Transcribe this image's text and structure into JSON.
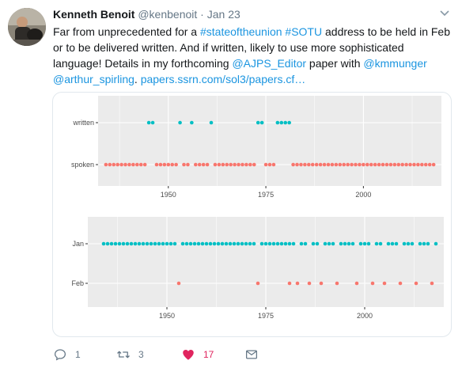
{
  "tweet": {
    "author_name": "Kenneth Benoit",
    "handle": "@kenbenoit",
    "separator": "·",
    "date": "Jan 23",
    "text": {
      "t1": "Far from unprecedented for a ",
      "hashtag1": "#stateoftheunion",
      "t2": " ",
      "hashtag2": "#SOTU",
      "t3": " address to be held in Feb or to be delivered written. And if written, likely to use more sophisticated language! Details in my forthcoming ",
      "mention1": "@AJPS_Editor",
      "t4": " paper with ",
      "mention2": "@kmmunger",
      "t5": " ",
      "mention3": "@arthur_spirling",
      "t6": ". ",
      "link": "papers.ssrn.com/sol3/papers.cf…"
    }
  },
  "actions": {
    "reply_count": "1",
    "retweet_count": "3",
    "like_count": "17"
  },
  "icons": [
    "caret-down-icon",
    "reply-icon",
    "retweet-icon",
    "heart-icon",
    "message-icon"
  ],
  "colors": {
    "link": "#1b95e0",
    "like": "#e0245e",
    "teal": "#00bfc4",
    "salmon": "#f8766d",
    "panel": "#ebebeb"
  },
  "chart_data": [
    {
      "type": "scatter",
      "categories": [
        "written",
        "spoken"
      ],
      "xlim": [
        1932,
        2020
      ],
      "xticks": [
        1950,
        1975,
        2000
      ],
      "series": [
        {
          "category": "written",
          "color": "#00bfc4",
          "x": [
            1945,
            1946,
            1953,
            1956,
            1961,
            1973,
            1974,
            1978,
            1979,
            1980,
            1981
          ]
        },
        {
          "category": "spoken",
          "color": "#f8766d",
          "x": [
            1934,
            1935,
            1936,
            1937,
            1938,
            1939,
            1940,
            1941,
            1942,
            1943,
            1944,
            1947,
            1948,
            1949,
            1950,
            1951,
            1952,
            1954,
            1955,
            1957,
            1958,
            1959,
            1960,
            1962,
            1963,
            1964,
            1965,
            1966,
            1967,
            1968,
            1969,
            1970,
            1971,
            1972,
            1975,
            1976,
            1977,
            1982,
            1983,
            1984,
            1985,
            1986,
            1987,
            1988,
            1989,
            1990,
            1991,
            1992,
            1993,
            1994,
            1995,
            1996,
            1997,
            1998,
            1999,
            2000,
            2001,
            2002,
            2003,
            2004,
            2005,
            2006,
            2007,
            2008,
            2009,
            2010,
            2011,
            2012,
            2013,
            2014,
            2015,
            2016,
            2017,
            2018
          ]
        }
      ]
    },
    {
      "type": "scatter",
      "categories": [
        "Jan",
        "Feb"
      ],
      "xlim": [
        1930,
        2020
      ],
      "xticks": [
        1950,
        1975,
        2000
      ],
      "series": [
        {
          "category": "Jan",
          "color": "#00bfc4",
          "x": [
            1934,
            1935,
            1936,
            1937,
            1938,
            1939,
            1940,
            1941,
            1942,
            1943,
            1944,
            1945,
            1946,
            1947,
            1948,
            1949,
            1950,
            1951,
            1952,
            1954,
            1955,
            1956,
            1957,
            1958,
            1959,
            1960,
            1961,
            1962,
            1963,
            1964,
            1965,
            1966,
            1967,
            1968,
            1969,
            1970,
            1971,
            1972,
            1974,
            1975,
            1976,
            1977,
            1978,
            1979,
            1980,
            1981,
            1982,
            1984,
            1985,
            1987,
            1988,
            1990,
            1991,
            1992,
            1994,
            1995,
            1996,
            1997,
            1999,
            2000,
            2001,
            2003,
            2004,
            2006,
            2007,
            2008,
            2010,
            2011,
            2012,
            2014,
            2015,
            2016,
            2018
          ]
        },
        {
          "category": "Feb",
          "color": "#f8766d",
          "x": [
            1953,
            1973,
            1981,
            1983,
            1986,
            1989,
            1993,
            1998,
            2002,
            2005,
            2009,
            2013,
            2017
          ]
        }
      ]
    }
  ]
}
